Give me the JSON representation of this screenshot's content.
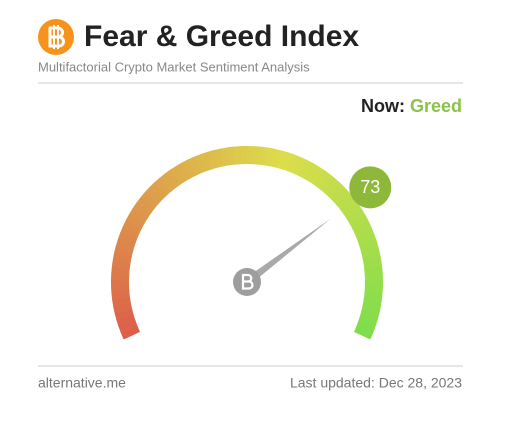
{
  "chart_data": {
    "type": "gauge",
    "title": "Fear & Greed Index",
    "subtitle": "Multifactorial Crypto Market Sentiment Analysis",
    "status_label": "Now:",
    "status": "Greed",
    "status_color": "#8bc34a",
    "value": 73,
    "ylim": [
      0,
      100
    ],
    "badge_color": "#8db83a",
    "source": "alternative.me",
    "updated": "Last updated: Dec 28, 2023"
  }
}
